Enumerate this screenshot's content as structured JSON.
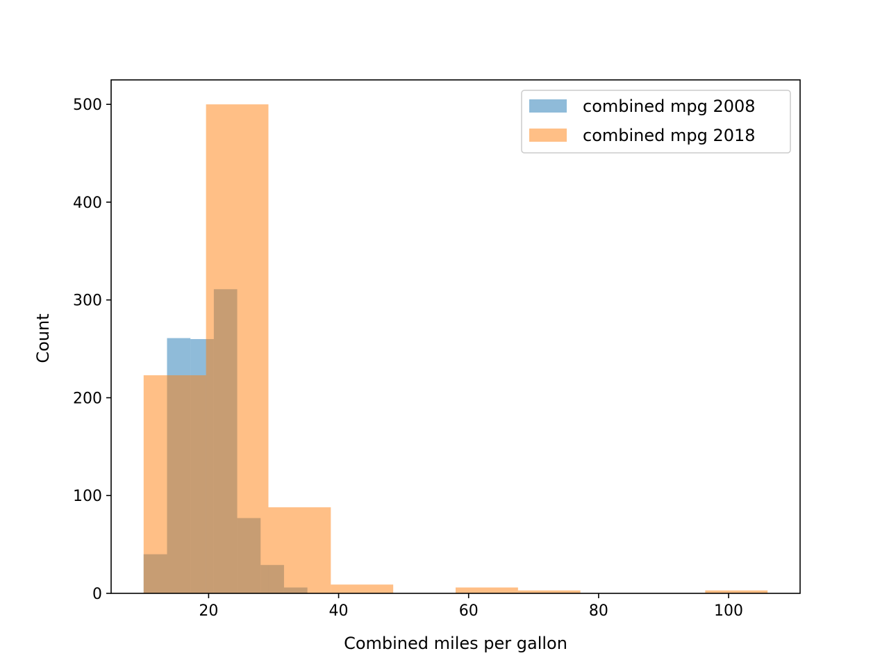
{
  "chart_data": {
    "type": "bar",
    "subtype": "histogram",
    "title": "",
    "xlabel": "Combined miles per gallon",
    "ylabel": "Count",
    "xlim": [
      5,
      111
    ],
    "ylim": [
      0,
      525
    ],
    "xticks": [
      20,
      40,
      60,
      80,
      100
    ],
    "yticks": [
      0,
      100,
      200,
      300,
      400,
      500
    ],
    "grid": false,
    "legend_position": "upper right",
    "series": [
      {
        "name": "combined mpg 2008",
        "color": "#1f77b4",
        "alpha": 0.5,
        "bins": [
          {
            "x0": 10.0,
            "x1": 13.6,
            "count": 40
          },
          {
            "x0": 13.6,
            "x1": 17.2,
            "count": 261
          },
          {
            "x0": 17.2,
            "x1": 20.8,
            "count": 260
          },
          {
            "x0": 20.8,
            "x1": 24.4,
            "count": 311
          },
          {
            "x0": 24.4,
            "x1": 28.0,
            "count": 77
          },
          {
            "x0": 28.0,
            "x1": 31.6,
            "count": 29
          },
          {
            "x0": 31.6,
            "x1": 35.2,
            "count": 6
          }
        ]
      },
      {
        "name": "combined mpg 2018",
        "color": "#ff7f0e",
        "alpha": 0.5,
        "bins": [
          {
            "x0": 10.0,
            "x1": 19.6,
            "count": 223
          },
          {
            "x0": 19.6,
            "x1": 29.2,
            "count": 500
          },
          {
            "x0": 29.2,
            "x1": 38.8,
            "count": 88
          },
          {
            "x0": 38.8,
            "x1": 48.4,
            "count": 9
          },
          {
            "x0": 48.4,
            "x1": 58.0,
            "count": 0
          },
          {
            "x0": 58.0,
            "x1": 67.6,
            "count": 6
          },
          {
            "x0": 67.6,
            "x1": 77.2,
            "count": 3
          },
          {
            "x0": 77.2,
            "x1": 86.8,
            "count": 0
          },
          {
            "x0": 86.8,
            "x1": 96.4,
            "count": 0
          },
          {
            "x0": 96.4,
            "x1": 106.0,
            "count": 3
          }
        ]
      }
    ]
  }
}
